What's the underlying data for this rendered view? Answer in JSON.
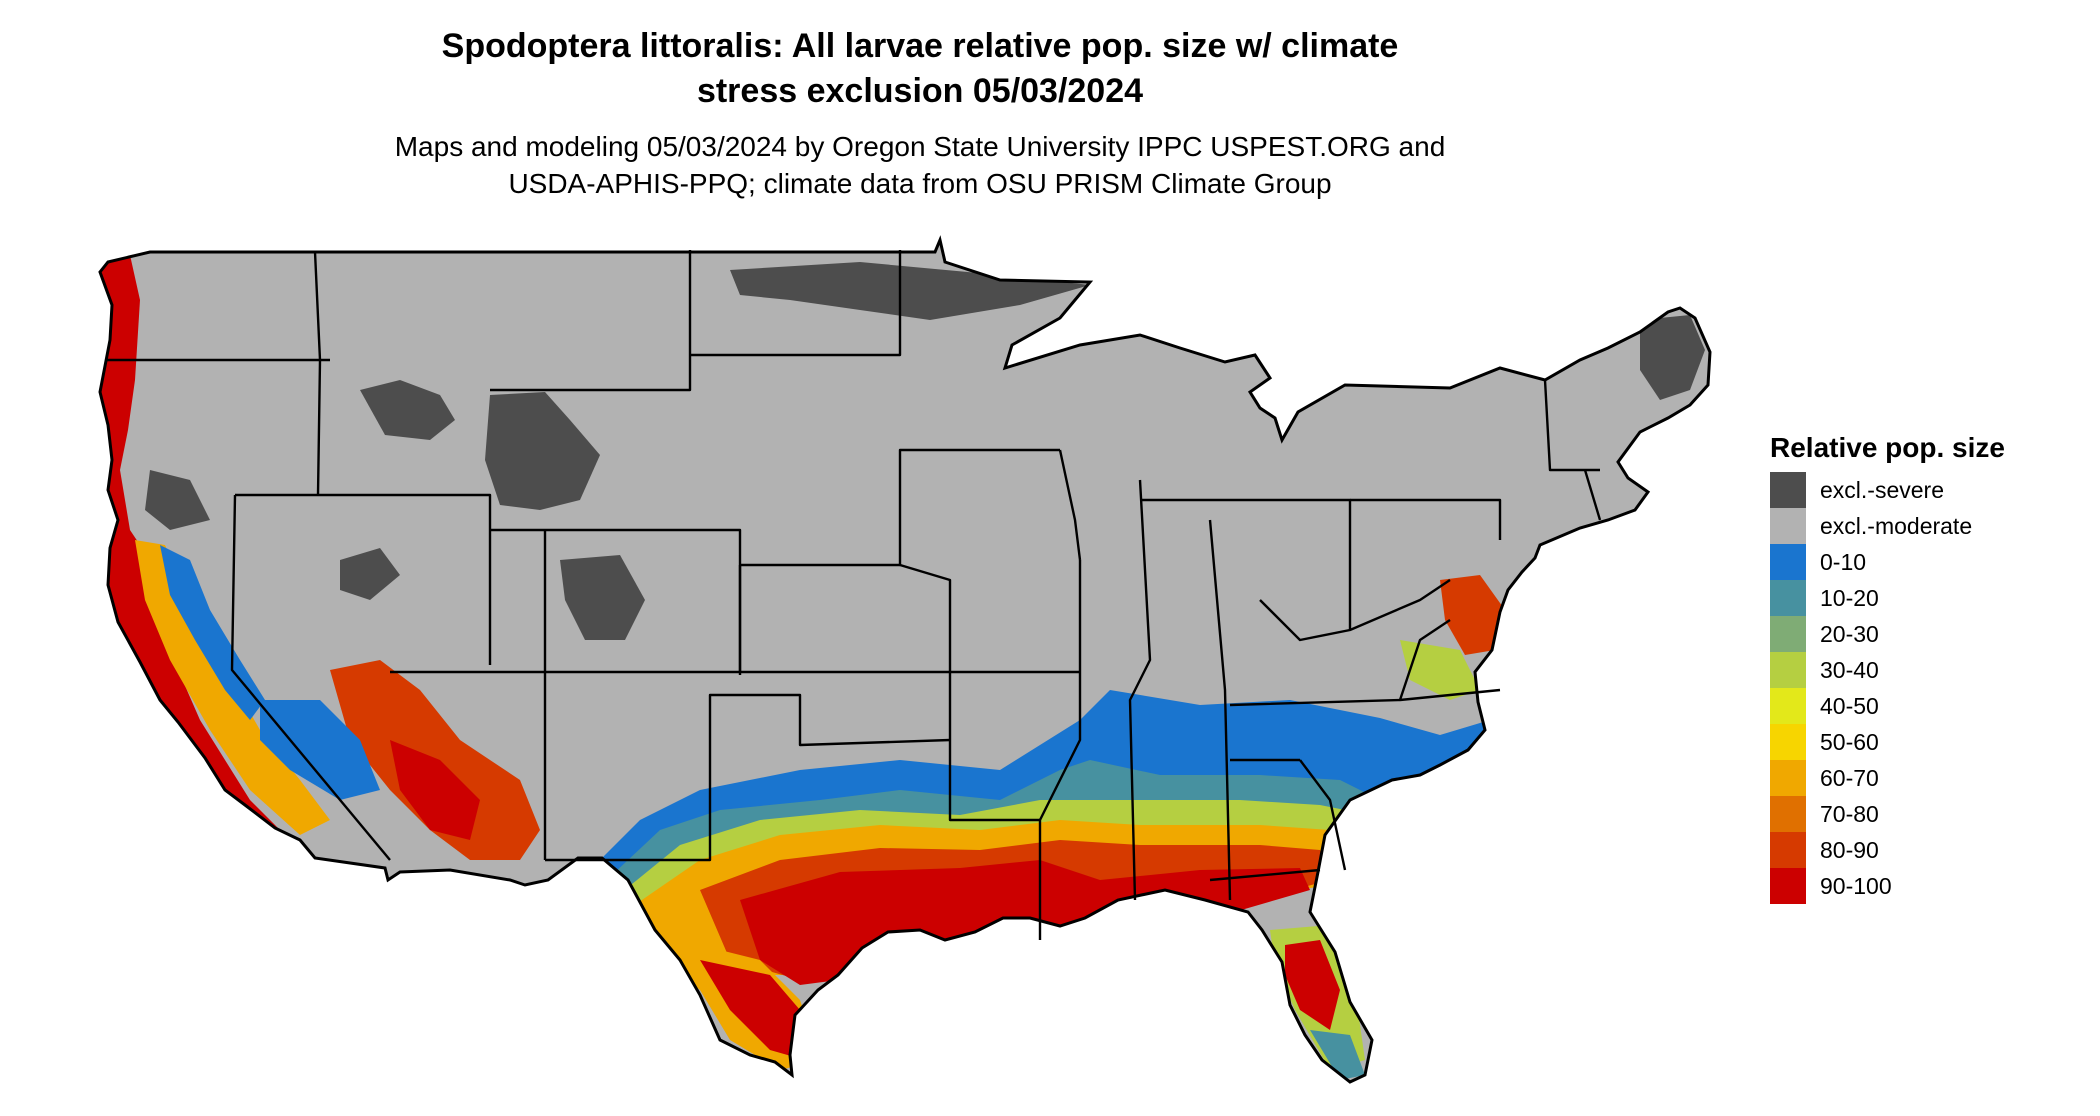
{
  "title_line1": "Spodoptera littoralis: All larvae relative pop. size w/ climate",
  "title_line2": "stress exclusion 05/03/2024",
  "subtitle_line1": "Maps and modeling 05/03/2024 by Oregon State University IPPC USPEST.ORG and",
  "subtitle_line2": "USDA-APHIS-PPQ; climate data from OSU PRISM Climate Group",
  "legend": {
    "title": "Relative pop. size",
    "items": [
      {
        "label": "excl.-severe",
        "color": "#4d4d4d"
      },
      {
        "label": "excl.-moderate",
        "color": "#b2b2b2"
      },
      {
        "label": "0-10",
        "color": "#1a75cf"
      },
      {
        "label": "10-20",
        "color": "#4791a0"
      },
      {
        "label": "20-30",
        "color": "#7fac75"
      },
      {
        "label": "30-40",
        "color": "#b5cf41"
      },
      {
        "label": "40-50",
        "color": "#e3e81a"
      },
      {
        "label": "50-60",
        "color": "#f7d500"
      },
      {
        "label": "60-70",
        "color": "#f0a800"
      },
      {
        "label": "70-80",
        "color": "#e07000"
      },
      {
        "label": "80-90",
        "color": "#d63a00"
      },
      {
        "label": "90-100",
        "color": "#cc0000"
      }
    ]
  }
}
